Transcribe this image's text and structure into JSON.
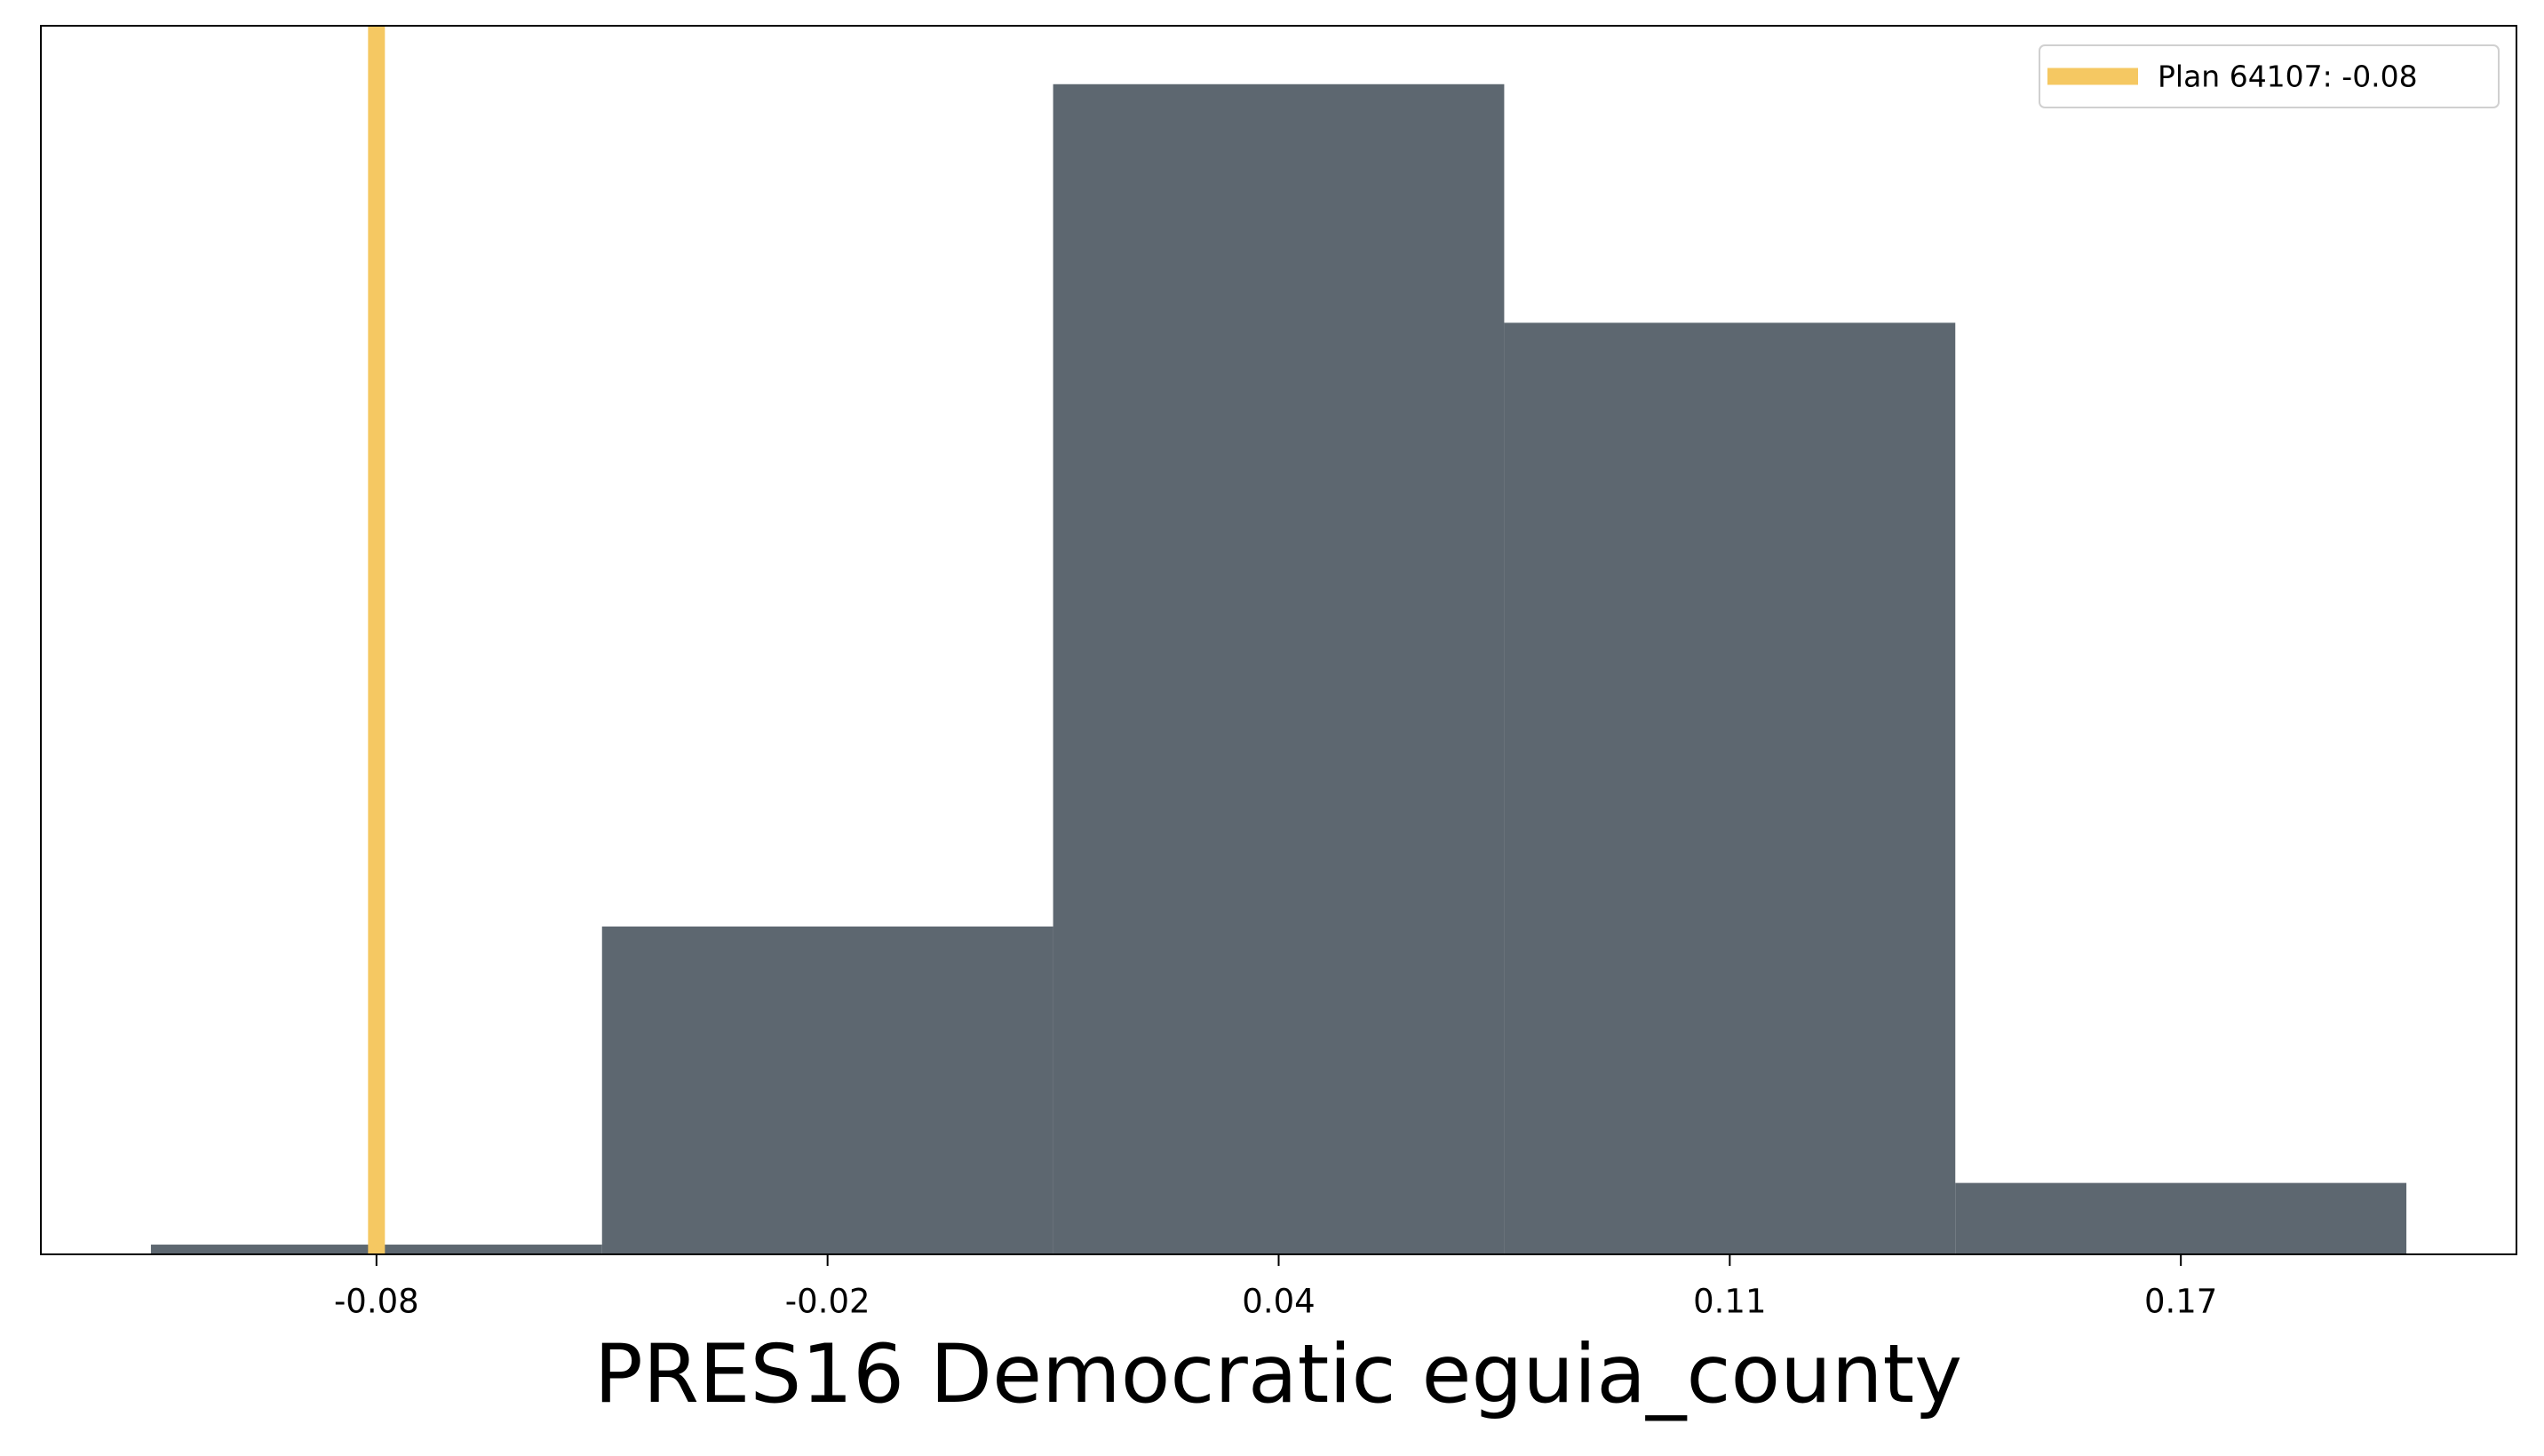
{
  "chart_data": {
    "type": "histogram",
    "x_label": "PRES16 Democratic eguia_county",
    "bins": [
      -0.11125,
      -0.04875,
      0.01375,
      0.07625,
      0.13875,
      0.20125
    ],
    "values": [
      6,
      202,
      721,
      574,
      44
    ],
    "color": "#5d6770",
    "xlim": [
      -0.1265,
      0.2165
    ],
    "ylim": [
      0,
      757
    ],
    "xticks": [
      {
        "value": -0.08,
        "label": "-0.08"
      },
      {
        "value": -0.0175,
        "label": "-0.02"
      },
      {
        "value": 0.045,
        "label": "0.04"
      },
      {
        "value": 0.1075,
        "label": "0.11"
      },
      {
        "value": 0.17,
        "label": "0.17"
      }
    ],
    "plan_line": {
      "name": "Plan 64107: -0.08",
      "value": -0.08,
      "color": "#f5c862"
    },
    "legend": "upper right"
  }
}
